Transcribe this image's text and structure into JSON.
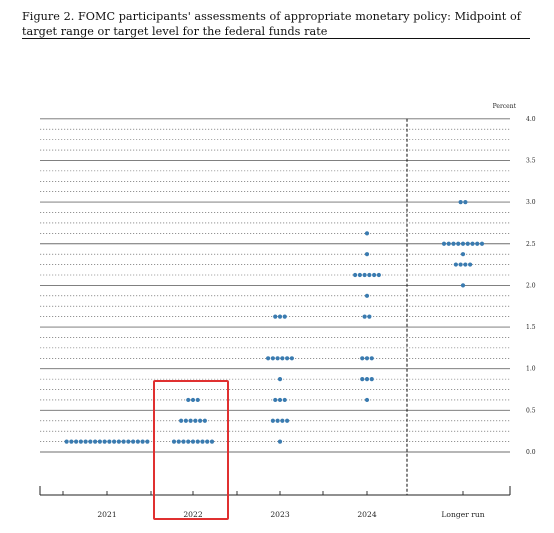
{
  "caption": "Figure 2. FOMC participants' assessments of appropriate monetary policy: Midpoint of target range or target level for the federal funds rate",
  "colors": {
    "dot": "#3a7bb0",
    "highlight": "#e03030",
    "gridline": "#555555",
    "divider": "#222222"
  },
  "chart_data": {
    "type": "scatter",
    "title": "",
    "xlabel": "",
    "ylabel": "Percent",
    "categories": [
      "2021",
      "2022",
      "2023",
      "2024",
      "Longer run"
    ],
    "y_ticks": [
      "0.0",
      "0.5",
      "1.0",
      "1.5",
      "2.0",
      "2.5",
      "3.0",
      "3.5",
      "4.0"
    ],
    "ylim": [
      0,
      4.0
    ],
    "grid": "dotted minor, solid major",
    "highlighted_category": "2022",
    "dot_counts": [
      {
        "category": "2021",
        "points": [
          {
            "y": 0.125,
            "count": 18
          }
        ]
      },
      {
        "category": "2022",
        "points": [
          {
            "y": 0.625,
            "count": 3
          },
          {
            "y": 0.375,
            "count": 6
          },
          {
            "y": 0.125,
            "count": 9
          }
        ]
      },
      {
        "category": "2023",
        "points": [
          {
            "y": 1.625,
            "count": 3
          },
          {
            "y": 1.125,
            "count": 6
          },
          {
            "y": 0.875,
            "count": 1
          },
          {
            "y": 0.625,
            "count": 3
          },
          {
            "y": 0.375,
            "count": 4
          },
          {
            "y": 0.125,
            "count": 1
          }
        ]
      },
      {
        "category": "2024",
        "points": [
          {
            "y": 2.625,
            "count": 1
          },
          {
            "y": 2.375,
            "count": 1
          },
          {
            "y": 2.125,
            "count": 6
          },
          {
            "y": 1.875,
            "count": 1
          },
          {
            "y": 1.625,
            "count": 2
          },
          {
            "y": 1.125,
            "count": 3
          },
          {
            "y": 0.875,
            "count": 3
          },
          {
            "y": 0.625,
            "count": 1
          }
        ]
      },
      {
        "category": "Longer run",
        "points": [
          {
            "y": 3.0,
            "count": 2
          },
          {
            "y": 2.5,
            "count": 9
          },
          {
            "y": 2.375,
            "count": 1
          },
          {
            "y": 2.25,
            "count": 4
          },
          {
            "y": 2.0,
            "count": 1
          }
        ]
      }
    ]
  }
}
